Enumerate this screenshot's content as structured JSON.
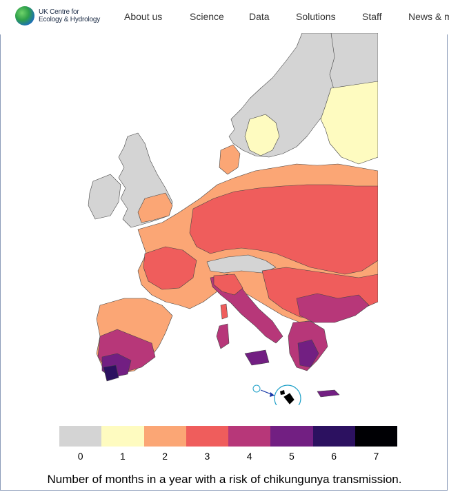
{
  "header": {
    "logo_line1": "UK Centre for",
    "logo_line2": "Ecology & Hydrology",
    "nav": [
      "About us",
      "Science",
      "Data",
      "Solutions",
      "Staff",
      "News & m"
    ]
  },
  "legend": {
    "values": [
      "0",
      "1",
      "2",
      "3",
      "4",
      "5",
      "6",
      "7"
    ],
    "colors": [
      "#d4d4d4",
      "#fefbc0",
      "#fba675",
      "#ef5d5c",
      "#b73779",
      "#721f82",
      "#2c1160",
      "#000004"
    ],
    "caption": "Number of months in a year with a risk of chikungunya transmission."
  }
}
